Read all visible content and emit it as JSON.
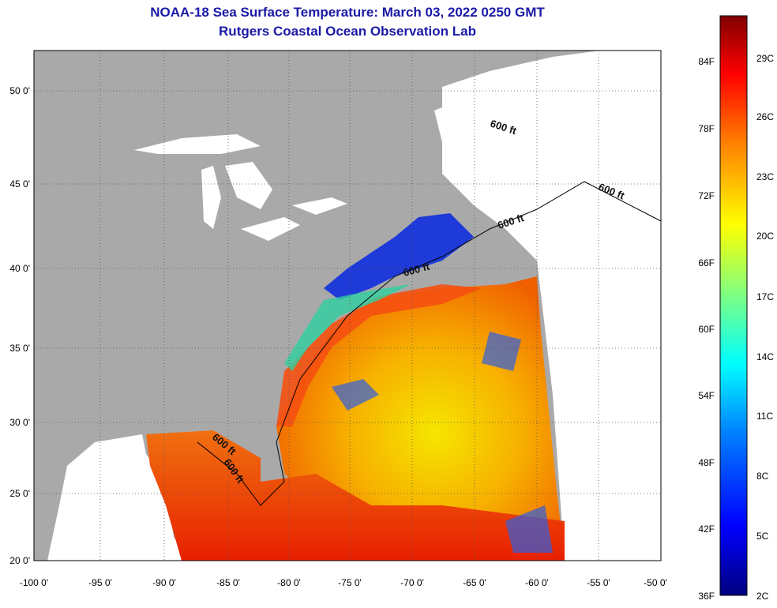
{
  "header": {
    "title": "NOAA-18 Sea Surface Temperature:  March 03, 2022 0250 GMT",
    "subtitle": "Rutgers Coastal Ocean Observation Lab"
  },
  "map": {
    "lon_range": [
      -100,
      -50
    ],
    "lat_range": [
      20,
      52.5
    ],
    "lon_ticks": [
      "-100 0'",
      "-95 0'",
      "-90 0'",
      "-85 0'",
      "-80 0'",
      "-75 0'",
      "-70 0'",
      "-65 0'",
      "-60 0'",
      "-55 0'",
      "-50 0'"
    ],
    "lat_ticks": [
      "50 0'",
      "45 0'",
      "40 0'",
      "35 0'",
      "30 0'",
      "25 0'",
      "20 0'"
    ],
    "contour_labels": [
      "600 ft",
      "600 ft",
      "600 ft",
      "600 ft",
      "600 ft",
      "600 ft"
    ],
    "colors": {
      "land": "#a9a9a9",
      "cloud_mask": "#ffffff",
      "grid": "#555555"
    }
  },
  "legend": {
    "fahrenheit_labels": [
      "84F",
      "78F",
      "72F",
      "66F",
      "60F",
      "54F",
      "48F",
      "42F",
      "36F"
    ],
    "celsius_labels": [
      "29C",
      "26C",
      "23C",
      "20C",
      "17C",
      "14C",
      "11C",
      "8C",
      "5C",
      "2C"
    ]
  }
}
